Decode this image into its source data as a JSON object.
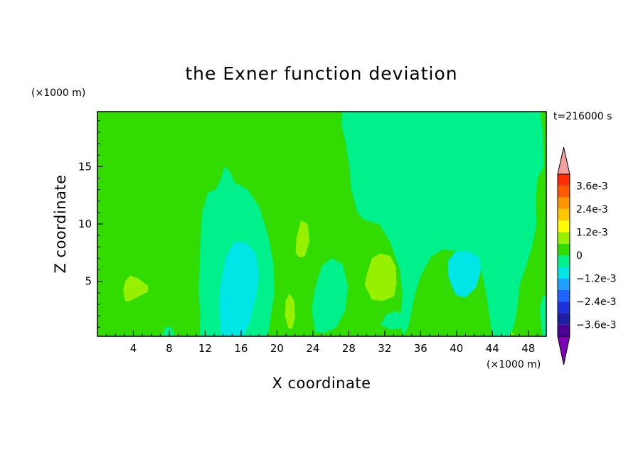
{
  "chart_data": {
    "type": "heatmap",
    "title": "the Exner function deviation",
    "xlabel": "X coordinate",
    "ylabel": "Z coordinate",
    "x_unit": "(×1000 m)",
    "y_unit": "(×1000 m)",
    "time_label": "t=216000 s",
    "xlim": [
      0,
      50
    ],
    "ylim": [
      0.2,
      19.8
    ],
    "x_ticks": [
      4,
      8,
      12,
      16,
      20,
      24,
      28,
      32,
      36,
      40,
      44,
      48
    ],
    "y_ticks": [
      5,
      10,
      15
    ],
    "colorbar": {
      "levels": [
        -0.0042,
        -0.0036,
        -0.003,
        -0.0024,
        -0.0018,
        -0.0012,
        -0.0006,
        0,
        0.0006,
        0.0012,
        0.0018,
        0.0024,
        0.003,
        0.0036,
        0.0042
      ],
      "tick_labels": [
        "3.6e-3",
        "2.4e-3",
        "1.2e-3",
        "0",
        "−1.2e-3",
        "−2.4e-3",
        "−3.6e-3"
      ],
      "tick_values": [
        0.0036,
        0.0024,
        0.0012,
        0,
        -0.0012,
        -0.0024,
        -0.0036
      ],
      "colors": [
        "#7d00b4",
        "#4b0096",
        "#1e1ea0",
        "#1e32dc",
        "#1e64ff",
        "#1ea0ff",
        "#00e6e6",
        "#00f08c",
        "#32dc00",
        "#96f000",
        "#ffff00",
        "#ffc800",
        "#ff9600",
        "#ff5a00",
        "#ff2d00",
        "#f5a0a0"
      ]
    },
    "regions": [
      {
        "level": 0,
        "color": "#32dc00",
        "polygon": [
          [
            0,
            0.2
          ],
          [
            50,
            0.2
          ],
          [
            50,
            19.8
          ],
          [
            0,
            19.8
          ]
        ]
      },
      {
        "level": -0.0006,
        "color": "#00f08c",
        "polygon": [
          [
            27.3,
            19.8
          ],
          [
            49.3,
            19.8
          ],
          [
            49.6,
            18
          ],
          [
            49.7,
            15
          ],
          [
            49,
            14
          ],
          [
            48.8,
            12
          ],
          [
            48.9,
            10
          ],
          [
            48.4,
            8
          ],
          [
            47.6,
            6
          ],
          [
            47,
            4.7
          ],
          [
            46.8,
            3
          ],
          [
            46.5,
            1.5
          ],
          [
            46,
            0.2
          ],
          [
            44,
            0.2
          ],
          [
            43.7,
            2
          ],
          [
            43.3,
            4
          ],
          [
            42.8,
            6
          ],
          [
            42,
            7.4
          ],
          [
            40.7,
            7.6
          ],
          [
            38.5,
            7.8
          ],
          [
            37.2,
            7.2
          ],
          [
            36,
            5.5
          ],
          [
            35.4,
            4
          ],
          [
            35,
            2.5
          ],
          [
            34.6,
            1
          ],
          [
            34,
            0.2
          ],
          [
            33.8,
            2
          ],
          [
            34,
            4
          ],
          [
            33.7,
            6
          ],
          [
            32.6,
            8.5
          ],
          [
            31.4,
            10
          ],
          [
            29.7,
            10.4
          ],
          [
            29,
            11
          ],
          [
            28.3,
            13
          ],
          [
            28.1,
            15
          ],
          [
            27.7,
            17
          ],
          [
            27.2,
            18.7
          ]
        ]
      },
      {
        "level": -0.0006,
        "color": "#00f08c",
        "polygon": [
          [
            11.4,
            0.2
          ],
          [
            11.5,
            2
          ],
          [
            11.3,
            4
          ],
          [
            11.4,
            6
          ],
          [
            11.5,
            8.5
          ],
          [
            11.7,
            11
          ],
          [
            12.3,
            12.7
          ],
          [
            13.2,
            13
          ],
          [
            13.7,
            13.8
          ],
          [
            14.2,
            15
          ],
          [
            14.7,
            14.6
          ],
          [
            15.3,
            13.6
          ],
          [
            16.7,
            13
          ],
          [
            18,
            11.5
          ],
          [
            19,
            9
          ],
          [
            19.6,
            6.5
          ],
          [
            19.7,
            4
          ],
          [
            19.3,
            2
          ],
          [
            19,
            0.2
          ]
        ]
      },
      {
        "level": -0.0006,
        "color": "#00f08c",
        "polygon": [
          [
            24.3,
            0.6
          ],
          [
            23.9,
            2.5
          ],
          [
            24.3,
            4.5
          ],
          [
            25,
            6.3
          ],
          [
            26.1,
            7
          ],
          [
            27.3,
            6.5
          ],
          [
            27.9,
            4.5
          ],
          [
            27.6,
            2.5
          ],
          [
            26.6,
            1
          ],
          [
            25.3,
            0.5
          ]
        ]
      },
      {
        "level": -0.0006,
        "color": "#00f08c",
        "polygon": [
          [
            31.6,
            1.2
          ],
          [
            32.2,
            2.1
          ],
          [
            33.4,
            2.4
          ],
          [
            34.4,
            1.7
          ],
          [
            33.8,
            0.9
          ],
          [
            32.7,
            0.8
          ]
        ]
      },
      {
        "level": -0.0006,
        "color": "#00f08c",
        "polygon": [
          [
            7.2,
            0.2
          ],
          [
            7.6,
            1.0
          ],
          [
            8.2,
            1.0
          ],
          [
            8.6,
            0.2
          ]
        ]
      },
      {
        "level": -0.0006,
        "color": "#00f08c",
        "polygon": [
          [
            49.6,
            0.2
          ],
          [
            49.3,
            2.5
          ],
          [
            49.6,
            3.7
          ],
          [
            50,
            3.8
          ],
          [
            50,
            0.2
          ]
        ]
      },
      {
        "level": -0.0012,
        "color": "#00e6e6",
        "polygon": [
          [
            13.8,
            0.3
          ],
          [
            13.6,
            2.5
          ],
          [
            13.7,
            4.5
          ],
          [
            14.3,
            7
          ],
          [
            15.2,
            8.4
          ],
          [
            16.5,
            8.4
          ],
          [
            17.6,
            7.5
          ],
          [
            18,
            5.5
          ],
          [
            17.6,
            3.5
          ],
          [
            17,
            1.5
          ],
          [
            16.3,
            0.3
          ]
        ]
      },
      {
        "level": -0.0012,
        "color": "#00e6e6",
        "polygon": [
          [
            39.5,
            4.6
          ],
          [
            39.1,
            5.5
          ],
          [
            39.1,
            6.8
          ],
          [
            39.9,
            7.6
          ],
          [
            41.4,
            7.6
          ],
          [
            42.5,
            7.1
          ],
          [
            42.7,
            6
          ],
          [
            42.2,
            4.5
          ],
          [
            41,
            3.6
          ],
          [
            40,
            3.8
          ]
        ]
      },
      {
        "level": 0.0006,
        "color": "#96f000",
        "polygon": [
          [
            3.1,
            3.3
          ],
          [
            2.9,
            4.2
          ],
          [
            3.1,
            5
          ],
          [
            3.7,
            5.5
          ],
          [
            4.6,
            5.2
          ],
          [
            5.6,
            4.6
          ],
          [
            5.6,
            4.1
          ],
          [
            4.6,
            3.7
          ],
          [
            3.6,
            3.3
          ]
        ]
      },
      {
        "level": 0.0006,
        "color": "#96f000",
        "polygon": [
          [
            22.1,
            7.5
          ],
          [
            22.2,
            8.8
          ],
          [
            22.7,
            10.3
          ],
          [
            23.4,
            10
          ],
          [
            23.6,
            8.5
          ],
          [
            23.1,
            7.2
          ],
          [
            22.5,
            7.1
          ]
        ]
      },
      {
        "level": 0.0006,
        "color": "#96f000",
        "polygon": [
          [
            21.3,
            0.9
          ],
          [
            20.9,
            2
          ],
          [
            21,
            3.3
          ],
          [
            21.4,
            3.9
          ],
          [
            21.9,
            3.3
          ],
          [
            22,
            1.9
          ],
          [
            21.7,
            0.9
          ]
        ]
      },
      {
        "level": 0.0006,
        "color": "#96f000",
        "polygon": [
          [
            30,
            5.5
          ],
          [
            29.8,
            4.7
          ],
          [
            30.6,
            3.4
          ],
          [
            31.8,
            3.3
          ],
          [
            33,
            3.7
          ],
          [
            33.3,
            4.8
          ],
          [
            33.2,
            6.3
          ],
          [
            32.6,
            7.2
          ],
          [
            31.5,
            7.4
          ],
          [
            30.6,
            7
          ]
        ]
      },
      {
        "level": 0.0006,
        "color": "#96f000",
        "polygon": [
          [
            45.9,
            0.3
          ],
          [
            46.1,
            0.55
          ],
          [
            46.4,
            0.35
          ]
        ]
      }
    ]
  }
}
